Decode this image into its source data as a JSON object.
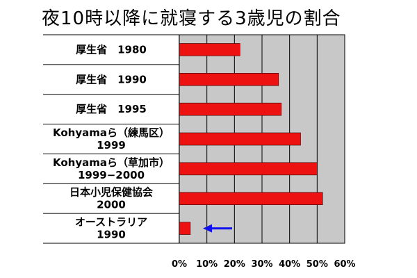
{
  "chart_data": {
    "type": "bar",
    "orientation": "horizontal",
    "title": "夜10時以降に就寝する3歳児の割合",
    "categories": [
      [
        "厚生省　1980"
      ],
      [
        "厚生省　1990"
      ],
      [
        "厚生省　1995"
      ],
      [
        "Kohyamaら（練馬区）",
        "1999"
      ],
      [
        "Kohyamaら（草加市）",
        "1999−2000"
      ],
      [
        "日本小児保健協会",
        "2000"
      ],
      [
        "オーストラリア",
        "1990"
      ]
    ],
    "values": [
      22,
      36,
      37,
      44,
      50,
      52,
      4
    ],
    "unit": "%",
    "xlim": [
      0,
      60
    ],
    "xticks": [
      "0%",
      "10%",
      "20%",
      "30%",
      "40%",
      "50%",
      "60%"
    ],
    "bar_color": "#ee1111",
    "plot_background": "#c8c8c8",
    "arrow_color": "#1111ee",
    "annotation": {
      "type": "arrow",
      "points_to_category": 6,
      "icon": "left-arrow-icon"
    },
    "grid": "vertical"
  }
}
